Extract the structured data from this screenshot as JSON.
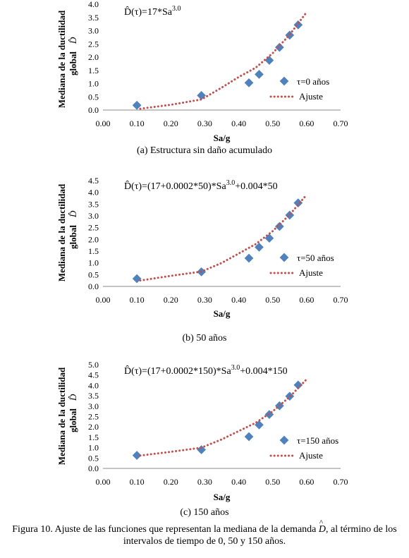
{
  "figure": {
    "caption_line1_a": "Figura 10. Ajuste de las funciones que representan la mediana de la demanda",
    "caption_symbol": "D",
    "caption_line1_b": ", al término de los",
    "caption_line2": "intervalos de tiempo de 0, 50 y 150 años."
  },
  "chart_data": [
    {
      "type": "scatter",
      "subcaption": "(a)  Estructura sin daño acumulado",
      "equation": "D̂(τ)=17*Sa",
      "equation_exp": "3.0",
      "xlabel": "Sa/g",
      "ylabel_line1": "Mediana de la ductilidad",
      "ylabel_line2": "global",
      "ylabel_symbol": "D̂",
      "xlim": [
        0.0,
        0.7
      ],
      "ylim": [
        0.0,
        4.0
      ],
      "xticks": [
        "0.00",
        "0.10",
        "0.20",
        "0.30",
        "0.40",
        "0.50",
        "0.60",
        "0.70"
      ],
      "yticks": [
        "0.0",
        "0.5",
        "1.0",
        "1.5",
        "2.0",
        "2.5",
        "3.0",
        "3.5",
        "4.0"
      ],
      "legend_position": "right",
      "series": [
        {
          "name": "τ=0 años",
          "kind": "points",
          "color": "#4f81bd",
          "x": [
            0.1,
            0.29,
            0.43,
            0.46,
            0.49,
            0.52,
            0.55,
            0.575
          ],
          "y": [
            0.18,
            0.55,
            1.03,
            1.35,
            1.88,
            2.37,
            2.83,
            3.22
          ]
        },
        {
          "name": "Ajuste",
          "kind": "dotted-line",
          "color": "#c0504d",
          "x": [
            0.11,
            0.2,
            0.29,
            0.35,
            0.4,
            0.45,
            0.5,
            0.55,
            0.6
          ],
          "y": [
            0.05,
            0.2,
            0.4,
            0.85,
            1.25,
            1.6,
            2.15,
            2.85,
            3.7
          ]
        }
      ]
    },
    {
      "type": "scatter",
      "subcaption": "(b)  50 años",
      "equation": "D̂(τ)=(17+0.0002*50)*Sa",
      "equation_exp": "3.0",
      "equation_tail": "+0.004*50",
      "xlabel": "Sa/g",
      "ylabel_line1": "Mediana de la ductilidad",
      "ylabel_line2": "global",
      "ylabel_symbol": "D̂",
      "xlim": [
        0.0,
        0.7
      ],
      "ylim": [
        0.0,
        4.5
      ],
      "xticks": [
        "0.00",
        "0.10",
        "0.20",
        "0.30",
        "0.40",
        "0.50",
        "0.60",
        "0.70"
      ],
      "yticks": [
        "0.0",
        "0.5",
        "1.0",
        "1.5",
        "2.0",
        "2.5",
        "3.0",
        "3.5",
        "4.0",
        "4.5"
      ],
      "legend_position": "right",
      "series": [
        {
          "name": "τ=50 años",
          "kind": "points",
          "color": "#4f81bd",
          "x": [
            0.1,
            0.29,
            0.43,
            0.46,
            0.49,
            0.52,
            0.55,
            0.575
          ],
          "y": [
            0.33,
            0.62,
            1.2,
            1.67,
            2.05,
            2.55,
            3.03,
            3.55
          ]
        },
        {
          "name": "Ajuste",
          "kind": "dotted-line",
          "color": "#c0504d",
          "x": [
            0.11,
            0.2,
            0.29,
            0.35,
            0.4,
            0.45,
            0.5,
            0.55,
            0.6
          ],
          "y": [
            0.25,
            0.45,
            0.63,
            1.0,
            1.4,
            1.8,
            2.35,
            3.05,
            3.9
          ]
        }
      ]
    },
    {
      "type": "scatter",
      "subcaption": "(c) 150 años",
      "equation": "D̂(τ)=(17+0.0002*150)*Sa",
      "equation_exp": "3.0",
      "equation_tail": "+0.004*150",
      "xlabel": "Sa/g",
      "ylabel_line1": "Mediana de la ductilidad",
      "ylabel_line2": "global",
      "ylabel_symbol": "D̂",
      "xlim": [
        0.0,
        0.7
      ],
      "ylim": [
        0.0,
        5.0
      ],
      "xticks": [
        "0.00",
        "0.10",
        "0.20",
        "0.30",
        "0.40",
        "0.50",
        "0.60",
        "0.70"
      ],
      "yticks": [
        "0.0",
        "0.5",
        "1.0",
        "1.5",
        "2.0",
        "2.5",
        "3.0",
        "3.5",
        "4.0",
        "4.5",
        "5.0"
      ],
      "legend_position": "right",
      "series": [
        {
          "name": "τ=150 años",
          "kind": "points",
          "color": "#4f81bd",
          "x": [
            0.1,
            0.29,
            0.43,
            0.46,
            0.49,
            0.52,
            0.55,
            0.575
          ],
          "y": [
            0.63,
            0.9,
            1.53,
            2.1,
            2.6,
            3.02,
            3.48,
            4.02
          ]
        },
        {
          "name": "Ajuste",
          "kind": "dotted-line",
          "color": "#c0504d",
          "x": [
            0.11,
            0.2,
            0.29,
            0.35,
            0.4,
            0.45,
            0.5,
            0.55,
            0.6
          ],
          "y": [
            0.62,
            0.8,
            1.0,
            1.4,
            1.8,
            2.2,
            2.75,
            3.45,
            4.3
          ]
        }
      ]
    }
  ]
}
